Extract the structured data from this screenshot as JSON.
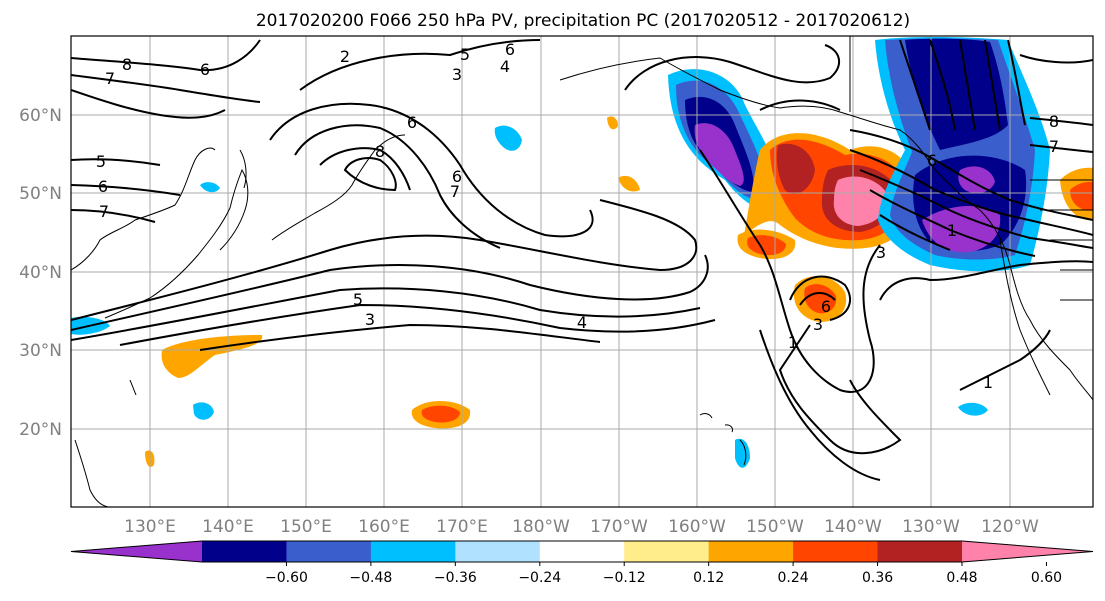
{
  "title": "2017020200 F066 250 hPa PV, precipitation PC (2017020512 - 2017020612)",
  "map": {
    "lon_range": [
      120,
      251
    ],
    "lat_range": [
      10,
      70
    ],
    "lat_labels": [
      "20°N",
      "30°N",
      "40°N",
      "50°N",
      "60°N"
    ],
    "lon_labels": [
      "130°E",
      "140°E",
      "150°E",
      "160°E",
      "170°E",
      "180°W",
      "170°W",
      "160°W",
      "150°W",
      "140°W",
      "130°W",
      "120°W"
    ],
    "grid": true,
    "contour_labels": [
      "8",
      "7",
      "6",
      "5",
      "6",
      "7",
      "2",
      "6",
      "5",
      "6",
      "3",
      "4",
      "8",
      "6",
      "7",
      "5",
      "3",
      "4",
      "1",
      "3",
      "6",
      "3",
      "1",
      "8",
      "7",
      "1",
      "6"
    ]
  },
  "colorbar": {
    "colors": [
      "#9932cc",
      "#00008b",
      "#3a5fcd",
      "#00bfff",
      "#b0e2ff",
      "#ffffff",
      "#ffec8b",
      "#ffa500",
      "#ff4500",
      "#b22222",
      "#ff82ab"
    ],
    "tick_labels": [
      "−0.60",
      "−0.48",
      "−0.36",
      "−0.24",
      "−0.12",
      "0.12",
      "0.24",
      "0.36",
      "0.48",
      "0.60"
    ]
  }
}
